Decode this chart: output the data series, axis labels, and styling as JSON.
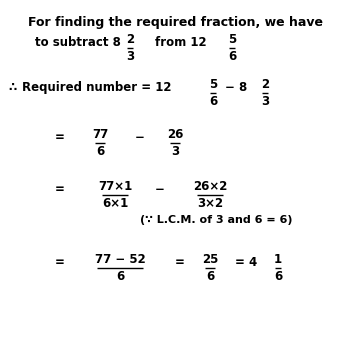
{
  "background_color": "#ffffff",
  "figsize": [
    3.53,
    3.56
  ],
  "dpi": 100,
  "fs": 8.5,
  "fw": "bold",
  "title": "For finding the required fraction, we have",
  "line1_text1": "to subtract 8",
  "line1_text2": "from 12",
  "line2_symbol": "∴",
  "line2_text": "Required number = 12",
  "minus": "−",
  "lcm_note": "(∵ L.C.M. of 3 and 6 = 6)"
}
